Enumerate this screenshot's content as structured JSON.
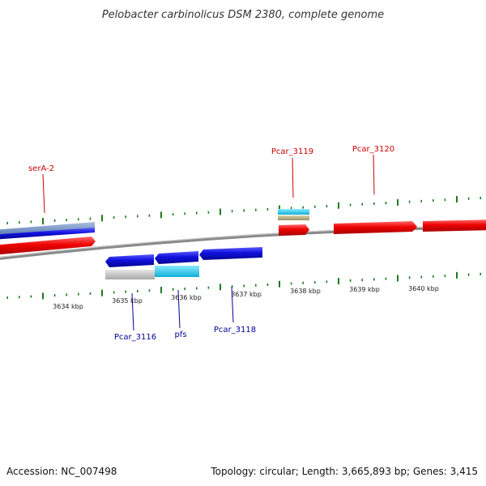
{
  "title": "Pelobacter carbinolicus DSM 2380, complete genome",
  "footer": {
    "accession": "Accession: NC_007498",
    "summary": "Topology: circular; Length: 3,665,893 bp; Genes: 3,415"
  },
  "colors": {
    "forward_gene": "#ee0000",
    "reverse_gene": "#1010dd",
    "forward_label": "#cc0000",
    "reverse_label": "#000099",
    "tick": "#1f7a1f",
    "backbone": "#888888",
    "cyan_feature": "#19c6ee",
    "gray_feature": "#c8c8c8",
    "olive_feature": "#b8b080"
  },
  "scale_labels": [
    "3634 kbp",
    "3635 kbp",
    "3636 kbp",
    "3637 kbp",
    "3638 kbp",
    "3639 kbp",
    "3640 kbp"
  ],
  "forward_labels": [
    "serA-2",
    "Pcar_3119",
    "Pcar_3120"
  ],
  "reverse_labels": [
    "Pcar_3116",
    "pfs",
    "Pcar_3118"
  ]
}
